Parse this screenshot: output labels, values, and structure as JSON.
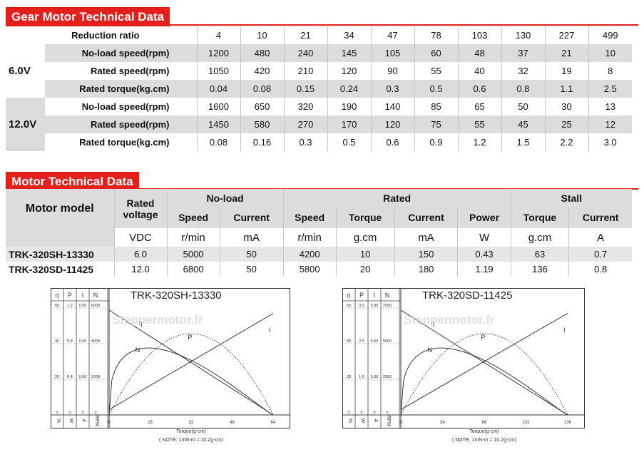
{
  "gear": {
    "title": "Gear Motor Technical Data",
    "ratio_label": "Reduction ratio",
    "ratios": [
      "4",
      "10",
      "21",
      "34",
      "47",
      "78",
      "103",
      "130",
      "227",
      "499"
    ],
    "groups": [
      {
        "voltage": "6.0V",
        "rows": [
          {
            "label": "No-load speed(rpm)",
            "values": [
              "1200",
              "480",
              "240",
              "145",
              "105",
              "60",
              "48",
              "37",
              "21",
              "10"
            ]
          },
          {
            "label": "Rated speed(rpm)",
            "values": [
              "1050",
              "420",
              "210",
              "120",
              "90",
              "55",
              "40",
              "32",
              "19",
              "8"
            ]
          },
          {
            "label": "Rated torque(kg.cm)",
            "values": [
              "0.04",
              "0.08",
              "0.15",
              "0.24",
              "0.3",
              "0.5",
              "0.6",
              "0.8",
              "1.1",
              "2.5"
            ]
          }
        ]
      },
      {
        "voltage": "12.0V",
        "rows": [
          {
            "label": "No-load speed(rpm)",
            "values": [
              "1600",
              "650",
              "320",
              "190",
              "140",
              "85",
              "65",
              "50",
              "30",
              "13"
            ]
          },
          {
            "label": "Rated speed(rpm)",
            "values": [
              "1450",
              "580",
              "270",
              "170",
              "120",
              "75",
              "55",
              "45",
              "25",
              "12"
            ]
          },
          {
            "label": "Rated torque(kg.cm)",
            "values": [
              "0.08",
              "0.16",
              "0.3",
              "0.5",
              "0.6",
              "0.9",
              "1.2",
              "1.5",
              "2.2",
              "3.0"
            ]
          }
        ]
      }
    ]
  },
  "motor": {
    "title": "Motor Technical Data",
    "model_header": "Motor model",
    "rated_voltage_header": "Rated voltage",
    "noload_header": "No-load",
    "rated_header": "Rated",
    "stall_header": "Stall",
    "sub_headers": [
      "Speed",
      "Current",
      "Speed",
      "Torque",
      "Current",
      "Power",
      "Torque",
      "Current"
    ],
    "units": [
      "VDC",
      "r/min",
      "mA",
      "r/min",
      "g.cm",
      "mA",
      "W",
      "g.cm",
      "A"
    ],
    "rows": [
      {
        "model": "TRK-320SH-13330",
        "values": [
          "6.0",
          "5000",
          "50",
          "4200",
          "10",
          "150",
          "0.43",
          "63",
          "0.7"
        ]
      },
      {
        "model": "TRK-320SD-11425",
        "values": [
          "12.0",
          "6800",
          "50",
          "5800",
          "20",
          "180",
          "1.19",
          "136",
          "0.8"
        ]
      }
    ]
  },
  "watermark": "Steppermotor.fr",
  "charts": [
    {
      "title": "TRK-320SH-13330",
      "col_headers": [
        "η",
        "P",
        "I",
        "N"
      ],
      "units": [
        "%",
        "W",
        "A",
        "RPM"
      ],
      "scale": [
        [
          "60",
          "1.2",
          "0.60",
          "6000"
        ],
        [
          "40",
          "0.8",
          "0.60",
          "4000"
        ],
        [
          "20",
          "0.4",
          "0.30",
          "2000"
        ],
        [
          "0",
          "0",
          "0",
          "0"
        ]
      ],
      "x_ticks": [
        "0",
        "16",
        "32",
        "48",
        "64"
      ],
      "xlabel": "Torque(g-cm)",
      "note": "( NOTE: 1mN-m = 10.2g-cm)",
      "curve_labels": {
        "eta": "η",
        "n": "N",
        "p": "P",
        "i": "I"
      }
    },
    {
      "title": "TRK-320SD-11425",
      "col_headers": [
        "η",
        "P",
        "I",
        "N"
      ],
      "units": [
        "%",
        "W",
        "A",
        "RPM"
      ],
      "scale": [
        [
          "60",
          "3.0",
          "0.90",
          "7500"
        ],
        [
          "40",
          "2.0",
          "0.60",
          "5000"
        ],
        [
          "20",
          "1.0",
          "0.30",
          "2500"
        ],
        [
          "0",
          "0",
          "0",
          "0"
        ]
      ],
      "x_ticks": [
        "0",
        "34",
        "68",
        "102",
        "136"
      ],
      "xlabel": "Torque(g-cm)",
      "note": "( NOTE: 1mN-m = 10.2g-cm)",
      "curve_labels": {
        "eta": "η",
        "n": "N",
        "p": "P",
        "i": "I"
      }
    }
  ]
}
